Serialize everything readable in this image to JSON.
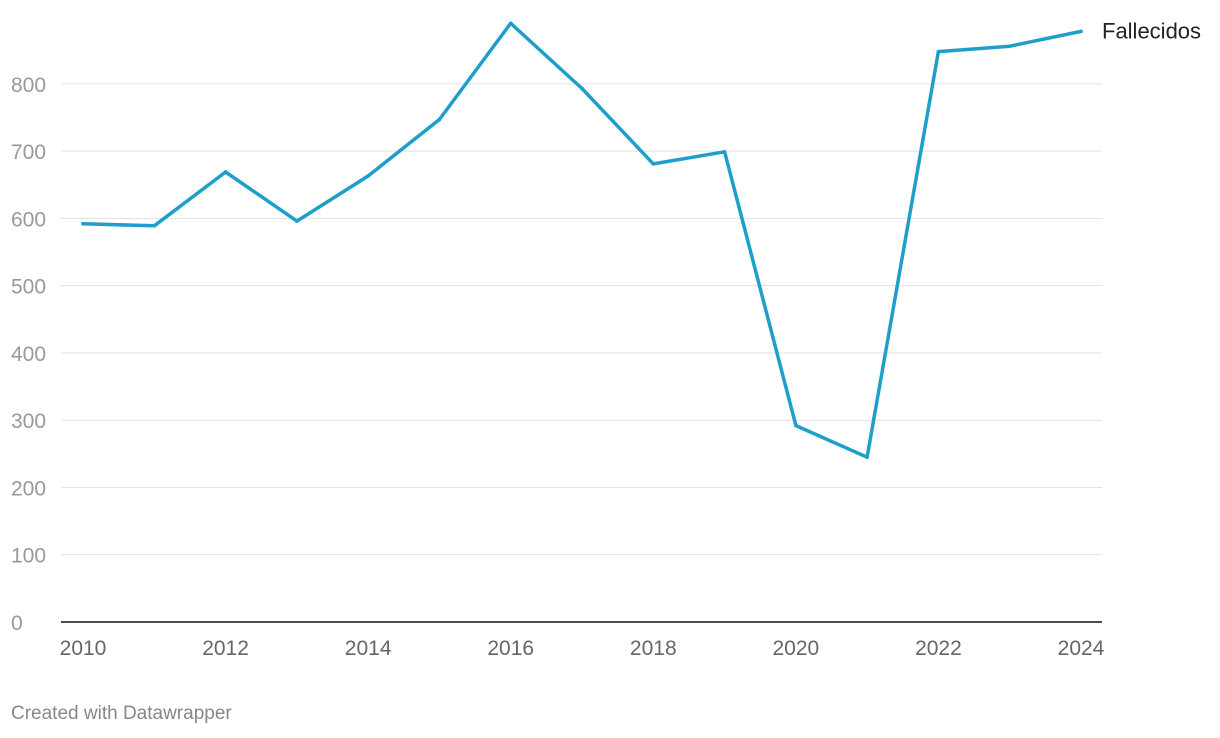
{
  "chart_data": {
    "type": "line",
    "title": "",
    "xlabel": "",
    "ylabel": "",
    "x": [
      2010,
      2011,
      2012,
      2013,
      2014,
      2015,
      2016,
      2017,
      2018,
      2019,
      2020,
      2021,
      2022,
      2023,
      2024
    ],
    "series": [
      {
        "name": "Fallecidos",
        "color": "#1e9fca",
        "values": [
          592,
          589,
          669,
          596,
          663,
          747,
          890,
          793,
          681,
          699,
          292,
          245,
          848,
          856,
          878
        ]
      }
    ],
    "xlim": [
      2010,
      2024
    ],
    "ylim": [
      0,
      890
    ],
    "x_ticks": [
      "2010",
      "2012",
      "2014",
      "2016",
      "2018",
      "2020",
      "2022",
      "2024"
    ],
    "y_ticks": [
      "0",
      "100",
      "200",
      "300",
      "400",
      "500",
      "600",
      "700",
      "800"
    ],
    "grid": true,
    "legend": "inline-end-label"
  },
  "credit": "Created with Datawrapper"
}
